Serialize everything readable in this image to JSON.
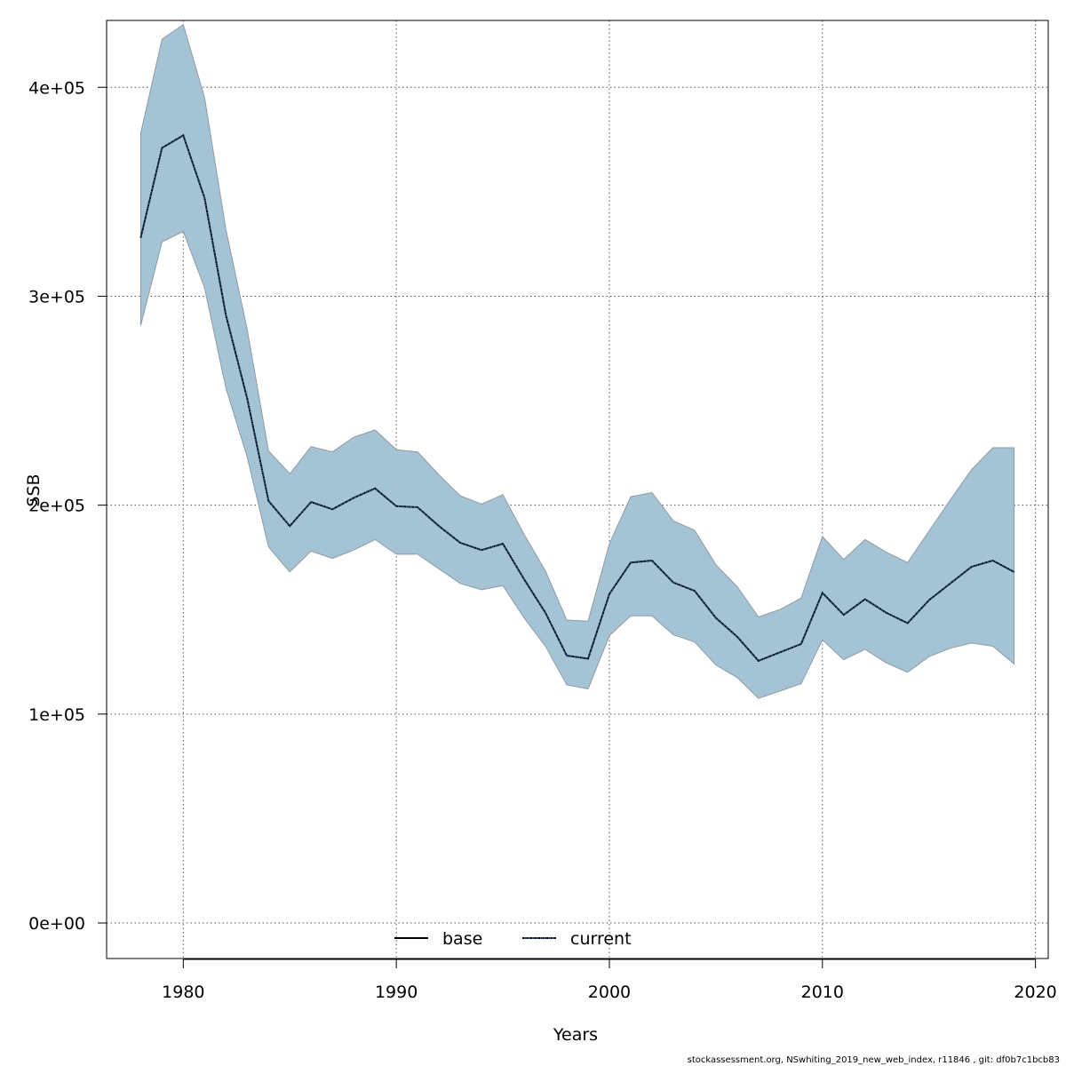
{
  "chart_data": {
    "type": "line",
    "xlabel": "Years",
    "ylabel": "SSB",
    "xlim": [
      1976.4,
      2020.6
    ],
    "ylim": [
      -17000,
      432000
    ],
    "x_ticks": [
      1980,
      1990,
      2000,
      2010,
      2020
    ],
    "x_tick_labels": [
      "1980",
      "1990",
      "2000",
      "2010",
      "2020"
    ],
    "y_ticks": [
      0,
      100000,
      200000,
      300000,
      400000
    ],
    "y_tick_labels": [
      "0e+00",
      "1e+05",
      "2e+05",
      "3e+05",
      "4e+05"
    ],
    "grid": true,
    "legend_position": "bottom-center",
    "colors": {
      "band_fill": "#a4c4d6",
      "band_stroke": "#8e9aa3",
      "current_line": "#00304f",
      "base_line": "#000000",
      "grid": "#555555"
    },
    "legend": [
      {
        "label": "base",
        "style": "solid",
        "color": "#000000"
      },
      {
        "label": "current",
        "style": "dotted",
        "color": "#00304f"
      }
    ],
    "x": [
      1978,
      1979,
      1980,
      1981,
      1982,
      1983,
      1984,
      1985,
      1986,
      1987,
      1988,
      1989,
      1990,
      1991,
      1992,
      1993,
      1994,
      1995,
      1996,
      1997,
      1998,
      1999,
      2000,
      2001,
      2002,
      2003,
      2004,
      2005,
      2006,
      2007,
      2008,
      2009,
      2010,
      2011,
      2012,
      2013,
      2014,
      2015,
      2016,
      2017,
      2018,
      2019
    ],
    "series": [
      {
        "name": "current",
        "values": [
          328000,
          371000,
          377000,
          347000,
          291000,
          251000,
          202000,
          190000,
          201500,
          198000,
          203500,
          208000,
          199500,
          199000,
          190000,
          182000,
          178500,
          181500,
          164500,
          148500,
          128000,
          126500,
          157500,
          172500,
          173500,
          163000,
          159000,
          146000,
          137000,
          125500,
          129500,
          133500,
          158000,
          147500,
          155000,
          148500,
          143500,
          154500,
          162500,
          170500,
          173500,
          168000
        ]
      }
    ],
    "band": {
      "upper": [
        378000,
        423000,
        430000,
        395000,
        332000,
        284000,
        226000,
        215000,
        228000,
        225500,
        232500,
        236000,
        226500,
        225500,
        214500,
        204500,
        200500,
        205000,
        186000,
        168500,
        145000,
        144500,
        181500,
        204000,
        206000,
        192500,
        188000,
        171500,
        161000,
        146500,
        150000,
        155500,
        185000,
        174000,
        183500,
        177500,
        172500,
        187500,
        202500,
        217000,
        227500,
        227500
      ],
      "lower": [
        286000,
        326000,
        331000,
        304000,
        256000,
        223000,
        180000,
        168000,
        178000,
        174500,
        178500,
        183500,
        176500,
        176500,
        169500,
        162500,
        159500,
        161500,
        146000,
        132500,
        114000,
        112000,
        137500,
        147000,
        147000,
        138000,
        134500,
        123500,
        117500,
        107500,
        111000,
        114500,
        135500,
        126000,
        131000,
        124500,
        120000,
        127500,
        131500,
        134000,
        132500,
        124000
      ]
    }
  },
  "footer": {
    "text": "stockassessment.org, NSwhiting_2019_new_web_index, r11846 , git: df0b7c1bcb83"
  }
}
